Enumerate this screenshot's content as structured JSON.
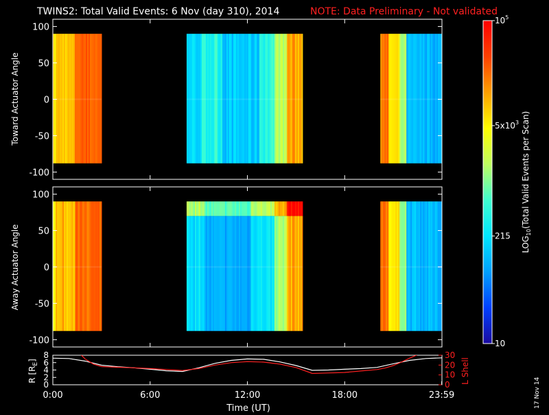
{
  "title": {
    "main": "TWINS2: Total Valid Events:  6 Nov (day 310), 2014",
    "note": "NOTE: Data Preliminary - Not validated",
    "note_color": "#ff2020"
  },
  "footer_date": "17 Nov 14",
  "chart_data": [
    {
      "type": "heatmap",
      "name": "toward-panel",
      "ylabel": "Toward Actuator Angle",
      "ylim": [
        -110,
        110
      ],
      "yticks": [
        -100,
        -50,
        0,
        50,
        100
      ],
      "ytick_labels": [
        "-100",
        "-50",
        "0",
        "50",
        "100"
      ],
      "xlim_hours": [
        0,
        24
      ],
      "angle_range": [
        -88,
        90
      ],
      "segments": [
        {
          "start_hour": 0.0,
          "end_hour": 3.0,
          "profile": "orange"
        },
        {
          "start_hour": 8.25,
          "end_hour": 15.4,
          "profile": "blue-toward"
        },
        {
          "start_hour": 20.2,
          "end_hour": 23.99,
          "profile": "mixed-toward"
        }
      ]
    },
    {
      "type": "heatmap",
      "name": "away-panel",
      "ylabel": "Away Actuator Angle",
      "ylim": [
        -110,
        110
      ],
      "yticks": [
        -100,
        -50,
        0,
        50,
        100
      ],
      "ytick_labels": [
        "-100",
        "-50",
        "0",
        "50",
        "100"
      ],
      "xlim_hours": [
        0,
        24
      ],
      "angle_range": [
        -88,
        90
      ],
      "segments": [
        {
          "start_hour": 0.0,
          "end_hour": 3.0,
          "profile": "orange"
        },
        {
          "start_hour": 8.25,
          "end_hour": 15.4,
          "profile": "blue-away"
        },
        {
          "start_hour": 20.2,
          "end_hour": 23.99,
          "profile": "mixed-away"
        }
      ]
    },
    {
      "type": "line",
      "name": "orbit-panel",
      "xlabel": "Time (UT)",
      "xticks_hours": [
        0,
        6,
        12,
        18,
        23.983
      ],
      "xtick_labels": [
        "0:00",
        "6:00",
        "12:00",
        "18:00",
        "23:59"
      ],
      "left_axis": {
        "label": "R [R",
        "label_sub": "E",
        "label_end": "]",
        "ylim": [
          0,
          8
        ],
        "yticks": [
          0,
          2,
          4,
          6,
          8
        ],
        "ytick_labels": [
          "0",
          "2",
          "4",
          "6",
          "8"
        ],
        "color": "#ffffff"
      },
      "right_axis": {
        "label": "L Shell",
        "ylim": [
          0,
          30
        ],
        "yticks": [
          0,
          10,
          20,
          30
        ],
        "ytick_labels": [
          "0",
          "10",
          "20",
          "30"
        ],
        "color": "#ff2020"
      },
      "series": [
        {
          "axis": "left",
          "color": "#ffffff",
          "x": [
            0,
            1,
            2,
            3,
            4,
            5,
            6,
            7,
            8,
            9,
            10,
            11,
            12,
            13,
            14,
            15,
            16,
            17,
            18,
            19,
            20,
            21,
            22,
            23,
            24
          ],
          "y": [
            7.2,
            7.1,
            6.4,
            5.3,
            4.9,
            4.6,
            4.2,
            3.8,
            3.6,
            4.6,
            5.8,
            6.6,
            7.0,
            6.9,
            6.2,
            5.2,
            3.9,
            4.0,
            4.2,
            4.4,
            4.7,
            5.7,
            6.6,
            7.1,
            7.3
          ]
        },
        {
          "axis": "right",
          "color": "#ff2020",
          "x": [
            1.7,
            2.0,
            2.5,
            3.0,
            4.0,
            5.0,
            6.0,
            7.0,
            8.0,
            9.0,
            10.0,
            11.0,
            12.0,
            13.0,
            14.0,
            15.0,
            16.0,
            17.0,
            18.0,
            19.0,
            20.0,
            20.5,
            21.0,
            21.5,
            22.0,
            22.7
          ],
          "y": [
            31,
            26,
            21,
            18.5,
            17.8,
            17.2,
            16.5,
            15.5,
            14.5,
            16.5,
            20,
            22.5,
            23.5,
            23,
            21,
            17.5,
            11.5,
            12,
            12.5,
            14,
            15.5,
            17,
            19.5,
            23,
            27,
            32
          ]
        }
      ]
    }
  ],
  "colorbar": {
    "label_main": "LOG",
    "label_sub": "10",
    "label_rest": "(Total Valid Events per Scan)",
    "scale": "log",
    "vmin": 10,
    "vmax": 100000,
    "tick_values": [
      10,
      215,
      5000,
      100000
    ],
    "tick_labels": [
      {
        "base": "10",
        "exp": ""
      },
      {
        "base": "215",
        "exp": ""
      },
      {
        "base": "5x10",
        "exp": "3"
      },
      {
        "base": "10",
        "exp": "5"
      }
    ],
    "colors": [
      "#1a0aa0",
      "#0040ff",
      "#00a0ff",
      "#00e6ff",
      "#40ffd0",
      "#c0ff60",
      "#ffff00",
      "#ffa000",
      "#ff4000",
      "#ff0000"
    ]
  }
}
